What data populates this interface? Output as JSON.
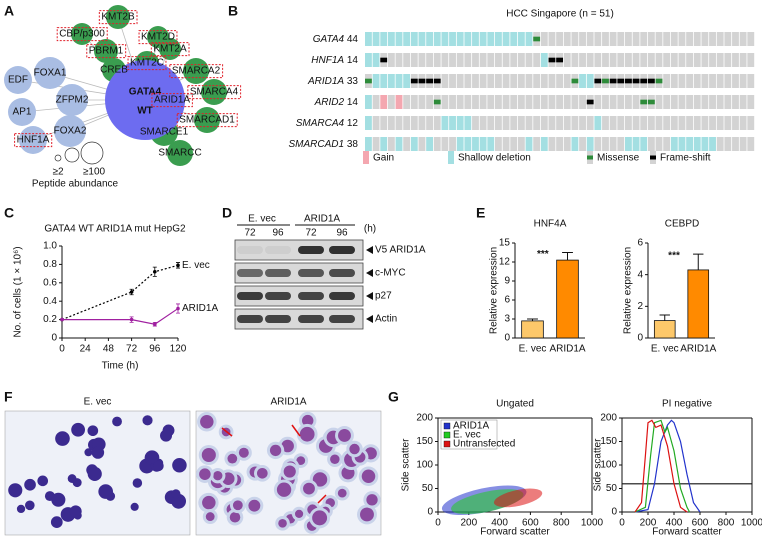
{
  "panel_labels": [
    "A",
    "B",
    "C",
    "D",
    "E",
    "F",
    "G"
  ],
  "network": {
    "colors": {
      "tf": "#a9bde3",
      "cofactor": "#3a9d4f",
      "center": "#6d6cf0",
      "highlight": "#e0202a"
    },
    "center": {
      "line1": "GATA4",
      "line2": "WT"
    },
    "nodes": [
      {
        "label": "EDF",
        "group": "tf",
        "boxed": false
      },
      {
        "label": "FOXA1",
        "group": "tf",
        "boxed": false
      },
      {
        "label": "AP1",
        "group": "tf",
        "boxed": false
      },
      {
        "label": "ZFPM2",
        "group": "tf",
        "boxed": false
      },
      {
        "label": "FOXA2",
        "group": "tf",
        "boxed": false
      },
      {
        "label": "HNF1A",
        "group": "tf",
        "boxed": true
      },
      {
        "label": "KMT2B",
        "group": "cofactor",
        "boxed": true
      },
      {
        "label": "CBP/p300",
        "group": "cofactor",
        "boxed": true
      },
      {
        "label": "PBRM1",
        "group": "cofactor",
        "boxed": true
      },
      {
        "label": "CREB",
        "group": "cofactor",
        "boxed": false
      },
      {
        "label": "KMT2D",
        "group": "cofactor",
        "boxed": true
      },
      {
        "label": "KMT2A",
        "group": "cofactor",
        "boxed": true
      },
      {
        "label": "KMT2C",
        "group": "cofactor",
        "boxed": true
      },
      {
        "label": "SMARCA2",
        "group": "cofactor",
        "boxed": true
      },
      {
        "label": "SMARCA4",
        "group": "cofactor",
        "boxed": true
      },
      {
        "label": "ARID1A",
        "group": "cofactor",
        "boxed": true
      },
      {
        "label": "SMARCAD1",
        "group": "cofactor",
        "boxed": true
      },
      {
        "label": "SMARCE1",
        "group": "cofactor",
        "boxed": false
      },
      {
        "label": "SMARCC",
        "group": "cofactor",
        "boxed": false
      }
    ],
    "legend": {
      "title": "Peptide abundance",
      "sizes": [
        "≥2",
        "≥100"
      ]
    }
  },
  "oncoprint": {
    "title": "HCC Singapore (n = 51)",
    "rows": [
      {
        "gene": "GATA4",
        "count": 44,
        "pattern": "ssssssssssssssssssssssm............................"
      },
      {
        "gene": "HNF1A",
        "count": 14,
        "pattern": "ssf....................sff........................."
      },
      {
        "gene": "ARID1A",
        "count": 33,
        "pattern": "msssssffff.................mssfmffffffm............"
      },
      {
        "gene": "ARID2",
        "count": 14,
        "pattern": "s.g.g....m...................f......mm............."
      },
      {
        "gene": "SMARCA4",
        "count": 12,
        "pattern": "s.........ssss................s...................."
      },
      {
        "gene": "SMARCAD1",
        "count": 38,
        "pattern": "s.s.s.s.s...sssss....s.s...s.s....sss...ssssss....."
      }
    ],
    "legend": [
      {
        "label": "Gain",
        "code": "g",
        "color": "#f4a7b0"
      },
      {
        "label": "Shallow deletion",
        "code": "s",
        "color": "#a3dfe2"
      },
      {
        "label": "Missense",
        "code": "m",
        "color": "#2e8b3a"
      },
      {
        "label": "Frame-shift",
        "code": "f",
        "color": "#000000"
      }
    ],
    "background": "#d3d3d3"
  },
  "blot": {
    "groups": [
      "E. vec",
      "ARID1A"
    ],
    "times": [
      72,
      96,
      72,
      96
    ],
    "unit": "(h)",
    "bands": [
      "V5 ARID1A",
      "c-MYC",
      "p27",
      "Actin"
    ]
  },
  "micrographs": [
    "E. vec",
    "ARID1A"
  ],
  "chart_data": [
    {
      "type": "line",
      "title": "GATA4 WT ARID1A mut HepG2",
      "xlabel": "Time (h)",
      "ylabel": "No. of cells (1 × 10⁶)",
      "x": [
        0,
        72,
        96,
        120
      ],
      "xlim": [
        0,
        120
      ],
      "xticks": [
        0,
        24,
        48,
        72,
        96,
        120
      ],
      "ylim": [
        0,
        1
      ],
      "yticks": [
        0,
        0.2,
        0.4,
        0.6,
        0.8,
        {
          "value": 1,
          "label": "1.0"
        }
      ],
      "series": [
        {
          "name": "E. vec",
          "color": "#000000",
          "line_style": "dotted",
          "values": [
            0.2,
            0.5,
            0.72,
            0.79
          ],
          "errors": [
            null,
            0.03,
            0.05,
            0.03
          ]
        },
        {
          "name": "ARID1A",
          "color": "#a020a0",
          "line_style": "solid",
          "values": [
            0.2,
            0.2,
            0.15,
            0.32
          ],
          "errors": [
            null,
            0.03,
            0.02,
            0.05
          ]
        }
      ]
    },
    {
      "type": "bar",
      "title": "HNF4A",
      "ylabel": "Relative expression",
      "categories": [
        "E. vec",
        "ARID1A"
      ],
      "values": [
        2.7,
        12.3
      ],
      "errors": [
        0.3,
        1.2
      ],
      "colors": [
        "#fdc86a",
        "#ff8a00"
      ],
      "annotation": "***",
      "ylim": [
        0,
        15
      ],
      "yticks": [
        0,
        3,
        6,
        9,
        12,
        15
      ]
    },
    {
      "type": "bar",
      "title": "CEBPD",
      "ylabel": "Relative expression",
      "categories": [
        "E. vec",
        "ARID1A"
      ],
      "values": [
        1.1,
        4.3
      ],
      "errors": [
        0.35,
        1
      ],
      "colors": [
        "#fdc86a",
        "#ff8a00"
      ],
      "annotation": "***",
      "ylim": [
        0,
        6
      ],
      "yticks": [
        0,
        2,
        4,
        6
      ]
    },
    {
      "type": "scatter",
      "title": "Ungated",
      "xlabel": "Forward scatter",
      "ylabel": "Side scatter",
      "xlim": [
        0,
        1000
      ],
      "xticks": [
        0,
        200,
        400,
        600,
        800,
        1000
      ],
      "ylim": [
        0,
        200
      ],
      "yticks": [
        0,
        50,
        100,
        150,
        200
      ],
      "legend_position": "upper left",
      "legend": [
        {
          "name": "ARID1A",
          "color": "#2233cc"
        },
        {
          "name": "E. vec",
          "color": "#22cc22"
        },
        {
          "name": "Untransfected",
          "color": "#dd1111"
        }
      ]
    },
    {
      "type": "line",
      "title": "PI negative",
      "xlabel": "Forward scatter",
      "ylabel": "Side scatter",
      "xlim": [
        0,
        1000
      ],
      "xticks": [
        0,
        200,
        400,
        600,
        800,
        1000
      ],
      "ylim": [
        0,
        200
      ],
      "yticks": [
        0,
        50,
        100,
        150,
        200
      ],
      "reference_line": 60,
      "series": [
        {
          "color": "#2233cc",
          "line_style": "solid",
          "x": [
            100,
            200,
            250,
            300,
            350,
            380,
            400,
            450,
            500,
            550,
            600
          ],
          "values": [
            0,
            5,
            60,
            150,
            185,
            195,
            190,
            150,
            80,
            20,
            0
          ]
        },
        {
          "color": "#22aa22",
          "line_style": "solid",
          "x": [
            100,
            180,
            220,
            250,
            300,
            330,
            350,
            400,
            450,
            500,
            520
          ],
          "values": [
            0,
            10,
            120,
            190,
            195,
            170,
            180,
            130,
            50,
            10,
            0
          ]
        },
        {
          "color": "#dd1111",
          "line_style": "solid",
          "x": [
            100,
            150,
            180,
            200,
            230,
            260,
            300,
            350,
            400,
            450,
            500
          ],
          "values": [
            0,
            20,
            120,
            190,
            195,
            180,
            185,
            140,
            60,
            10,
            0
          ]
        }
      ]
    }
  ]
}
